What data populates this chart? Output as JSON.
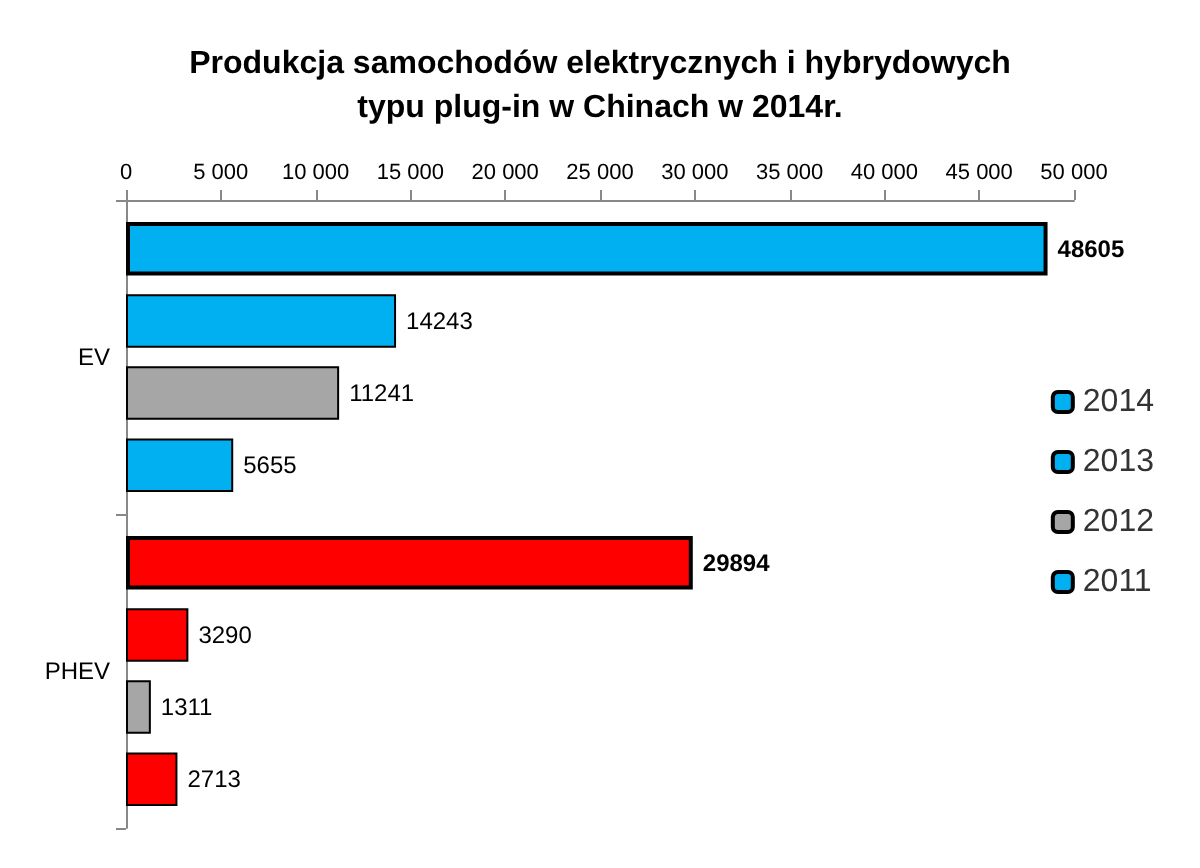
{
  "chart_data": {
    "type": "bar",
    "orientation": "horizontal",
    "title": "Produkcja samochodów elektrycznych i hybrydowych\ntypu plug-in w Chinach w 2014r.",
    "categories": [
      "EV",
      "PHEV"
    ],
    "series": [
      {
        "name": "2014",
        "color": "#00b0f0",
        "colors": [
          "#00b0f0",
          "#ff0000"
        ],
        "values": [
          48605,
          29894
        ]
      },
      {
        "name": "2013",
        "color": "#00b0f0",
        "colors": [
          "#00b0f0",
          "#ff0000"
        ],
        "values": [
          14243,
          3290
        ]
      },
      {
        "name": "2012",
        "color": "#a6a6a6",
        "colors": [
          "#a6a6a6",
          "#a6a6a6"
        ],
        "values": [
          11241,
          1311
        ]
      },
      {
        "name": "2011",
        "color": "#00b0f0",
        "colors": [
          "#00b0f0",
          "#ff0000"
        ],
        "values": [
          5655,
          2713
        ]
      }
    ],
    "xlim": [
      0,
      50000
    ],
    "xticks": [
      0,
      {
        "value": 5000,
        "label": "5 000"
      },
      {
        "value": 10000,
        "label": "10 000"
      },
      {
        "value": 15000,
        "label": "15 000"
      },
      {
        "value": 20000,
        "label": "20 000"
      },
      {
        "value": 25000,
        "label": "25 000"
      },
      {
        "value": 30000,
        "label": "30 000"
      },
      {
        "value": 35000,
        "label": "35 000"
      },
      {
        "value": 40000,
        "label": "40 000"
      },
      {
        "value": 45000,
        "label": "45 000"
      },
      {
        "value": 50000,
        "label": "50 000"
      }
    ],
    "data_labels": true,
    "legend": "right",
    "grid": false
  }
}
